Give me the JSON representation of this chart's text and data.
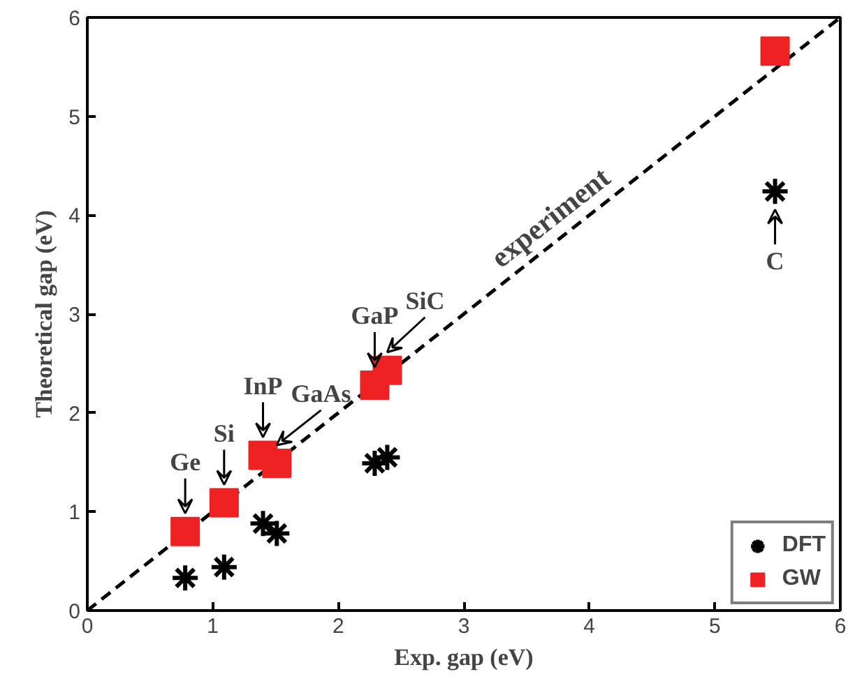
{
  "chart_data": {
    "type": "scatter",
    "xlabel": "Exp. gap (eV)",
    "ylabel": "Theoretical gap (eV)",
    "xlim": [
      0,
      6
    ],
    "ylim": [
      0,
      6
    ],
    "xticks": [
      0,
      1,
      2,
      3,
      4,
      5,
      6
    ],
    "yticks": [
      0,
      1,
      2,
      3,
      4,
      5,
      6
    ],
    "grid": false,
    "legend": "bottom right",
    "series": [
      {
        "type": "line",
        "color": "#000000",
        "line_style": "dashed",
        "marker": "none",
        "x": [
          0,
          6
        ],
        "values": [
          0,
          6
        ]
      },
      {
        "name": "DFT",
        "color": "#000000",
        "marker": "cross",
        "x": [
          0.78,
          1.09,
          1.4,
          1.51,
          2.29,
          2.39,
          5.48
        ],
        "values": [
          0.33,
          0.44,
          0.88,
          0.78,
          1.49,
          1.55,
          4.24
        ]
      },
      {
        "name": "GW",
        "color": "#ee2222",
        "marker": "square",
        "x": [
          0.78,
          1.09,
          1.4,
          1.51,
          2.29,
          2.39,
          5.48
        ],
        "values": [
          0.8,
          1.09,
          1.57,
          1.49,
          2.28,
          2.43,
          5.66
        ]
      }
    ],
    "annotations": [
      {
        "text": "Ge",
        "x": 0.78,
        "y": 0.8
      },
      {
        "text": "Si",
        "x": 1.09,
        "y": 1.09
      },
      {
        "text": "InP",
        "x": 1.4,
        "y": 1.57
      },
      {
        "text": "GaAs",
        "x": 1.51,
        "y": 1.49
      },
      {
        "text": "GaP",
        "x": 2.29,
        "y": 2.28
      },
      {
        "text": "SiC",
        "x": 2.39,
        "y": 2.43
      },
      {
        "text": "C",
        "x": 5.48,
        "y": 4.24
      },
      {
        "text": "experiment",
        "x": 3.8,
        "y": 3.8
      }
    ]
  }
}
